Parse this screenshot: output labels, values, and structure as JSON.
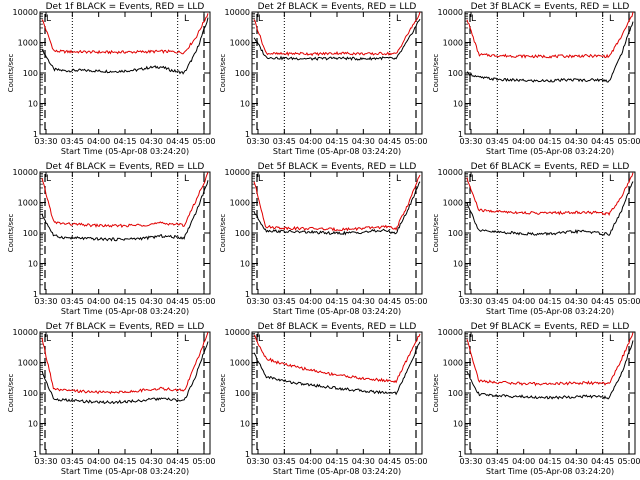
{
  "chart_data": [
    {
      "type": "line",
      "title": "Det 1f BLACK = Events, RED = LLD",
      "xlabel": "Start Time (05-Apr-08 03:24:20)",
      "ylabel": "Counts/sec",
      "yscale": "log",
      "ylim": [
        1,
        10000
      ],
      "yticks": [
        "1",
        "10",
        "100",
        "1000",
        "10000"
      ],
      "xticks": [
        "03:30",
        "03:45",
        "04:00",
        "04:15",
        "04:30",
        "04:45",
        "05:00"
      ],
      "marker": "L",
      "series": [
        {
          "color": "#000000",
          "values": [
            600,
            130,
            118,
            122,
            120,
            115,
            112,
            118,
            125,
            150,
            160,
            120,
            100,
            500,
            6000
          ]
        },
        {
          "color": "#e00000",
          "values": [
            6000,
            520,
            500,
            495,
            490,
            480,
            480,
            485,
            490,
            500,
            510,
            500,
            470,
            1500,
            9000
          ]
        }
      ]
    },
    {
      "type": "line",
      "title": "Det 2f BLACK = Events, RED = LLD",
      "xlabel": "Start Time (05-Apr-08 03:24:20)",
      "ylabel": "Counts/sec",
      "yscale": "log",
      "ylim": [
        1,
        10000
      ],
      "yticks": [
        "1",
        "10",
        "100",
        "1000",
        "10000"
      ],
      "xticks": [
        "03:30",
        "03:45",
        "04:00",
        "04:15",
        "04:30",
        "04:45",
        "05:00"
      ],
      "marker": "L",
      "series": [
        {
          "color": "#000000",
          "values": [
            1500,
            330,
            310,
            300,
            300,
            290,
            300,
            310,
            300,
            290,
            300,
            310,
            290,
            1200,
            6000
          ]
        },
        {
          "color": "#e00000",
          "values": [
            6000,
            450,
            420,
            430,
            440,
            420,
            430,
            450,
            440,
            430,
            420,
            440,
            420,
            2000,
            9000
          ]
        }
      ]
    },
    {
      "type": "line",
      "title": "Det 3f BLACK = Events, RED = LLD",
      "xlabel": "Start Time (05-Apr-08 03:24:20)",
      "ylabel": "Counts/sec",
      "yscale": "log",
      "ylim": [
        1,
        10000
      ],
      "yticks": [
        "1",
        "10",
        "100",
        "1000",
        "10000"
      ],
      "xticks": [
        "03:30",
        "03:45",
        "04:00",
        "04:15",
        "04:30",
        "04:45",
        "05:00"
      ],
      "marker": "L",
      "series": [
        {
          "color": "#000000",
          "values": [
            100,
            72,
            65,
            60,
            58,
            56,
            55,
            56,
            58,
            60,
            58,
            60,
            55,
            400,
            5000
          ]
        },
        {
          "color": "#e00000",
          "values": [
            6000,
            400,
            380,
            370,
            360,
            355,
            350,
            350,
            355,
            360,
            365,
            360,
            350,
            1500,
            9000
          ]
        }
      ]
    },
    {
      "type": "line",
      "title": "Det 4f BLACK = Events, RED = LLD",
      "xlabel": "Start Time (05-Apr-08 03:24:20)",
      "ylabel": "Counts/sec",
      "yscale": "log",
      "ylim": [
        1,
        10000
      ],
      "yticks": [
        "1",
        "10",
        "100",
        "1000",
        "10000"
      ],
      "xticks": [
        "03:30",
        "03:45",
        "04:00",
        "04:15",
        "04:30",
        "04:45",
        "05:00"
      ],
      "marker": "L",
      "series": [
        {
          "color": "#000000",
          "values": [
            400,
            80,
            70,
            68,
            65,
            63,
            62,
            63,
            65,
            70,
            80,
            75,
            70,
            500,
            5000
          ]
        },
        {
          "color": "#e00000",
          "values": [
            6000,
            220,
            200,
            190,
            180,
            175,
            170,
            175,
            180,
            190,
            210,
            200,
            180,
            1200,
            9000
          ]
        }
      ]
    },
    {
      "type": "line",
      "title": "Det 5f BLACK = Events, RED = LLD",
      "xlabel": "Start Time (05-Apr-08 03:24:20)",
      "ylabel": "Counts/sec",
      "yscale": "log",
      "ylim": [
        1,
        10000
      ],
      "yticks": [
        "1",
        "10",
        "100",
        "1000",
        "10000"
      ],
      "xticks": [
        "03:30",
        "03:45",
        "04:00",
        "04:15",
        "04:30",
        "04:45",
        "05:00"
      ],
      "marker": "L",
      "series": [
        {
          "color": "#000000",
          "values": [
            500,
            120,
            115,
            110,
            108,
            105,
            100,
            98,
            100,
            105,
            115,
            120,
            100,
            600,
            5000
          ]
        },
        {
          "color": "#e00000",
          "values": [
            5000,
            160,
            150,
            145,
            140,
            140,
            135,
            130,
            135,
            140,
            150,
            160,
            140,
            900,
            8000
          ]
        }
      ]
    },
    {
      "type": "line",
      "title": "Det 6f BLACK = Events, RED = LLD",
      "xlabel": "Start Time (05-Apr-08 03:24:20)",
      "ylabel": "Counts/sec",
      "yscale": "log",
      "ylim": [
        1,
        10000
      ],
      "yticks": [
        "1",
        "10",
        "100",
        "1000",
        "10000"
      ],
      "xticks": [
        "03:30",
        "03:45",
        "04:00",
        "04:15",
        "04:30",
        "04:45",
        "05:00"
      ],
      "marker": "L",
      "series": [
        {
          "color": "#000000",
          "values": [
            1000,
            120,
            110,
            105,
            100,
            95,
            92,
            95,
            100,
            110,
            115,
            100,
            90,
            500,
            5000
          ]
        },
        {
          "color": "#e00000",
          "values": [
            6000,
            560,
            520,
            500,
            480,
            460,
            450,
            455,
            460,
            470,
            480,
            460,
            430,
            1500,
            9000
          ]
        }
      ]
    },
    {
      "type": "line",
      "title": "Det 7f BLACK = Events, RED = LLD",
      "xlabel": "Start Time (05-Apr-08 03:24:20)",
      "ylabel": "Counts/sec",
      "yscale": "log",
      "ylim": [
        1,
        10000
      ],
      "yticks": [
        "1",
        "10",
        "100",
        "1000",
        "10000"
      ],
      "xticks": [
        "03:30",
        "03:45",
        "04:00",
        "04:15",
        "04:30",
        "04:45",
        "05:00"
      ],
      "marker": "L",
      "series": [
        {
          "color": "#000000",
          "values": [
            500,
            62,
            58,
            55,
            52,
            50,
            50,
            52,
            55,
            60,
            65,
            60,
            55,
            400,
            5000
          ]
        },
        {
          "color": "#e00000",
          "values": [
            6000,
            130,
            120,
            115,
            110,
            105,
            105,
            110,
            115,
            130,
            140,
            130,
            120,
            1000,
            9000
          ]
        }
      ]
    },
    {
      "type": "line",
      "title": "Det 8f BLACK = Events, RED = LLD",
      "xlabel": "Start Time (05-Apr-08 03:24:20)",
      "ylabel": "Counts/sec",
      "yscale": "log",
      "ylim": [
        1,
        10000
      ],
      "yticks": [
        "1",
        "10",
        "100",
        "1000",
        "10000"
      ],
      "xticks": [
        "03:30",
        "03:45",
        "04:00",
        "04:15",
        "04:30",
        "04:45",
        "05:00"
      ],
      "marker": "L",
      "series": [
        {
          "color": "#000000",
          "values": [
            2000,
            350,
            280,
            230,
            200,
            180,
            160,
            145,
            130,
            120,
            110,
            105,
            100,
            600,
            5000
          ]
        },
        {
          "color": "#e00000",
          "values": [
            8000,
            1400,
            1000,
            800,
            650,
            550,
            450,
            400,
            350,
            300,
            280,
            260,
            240,
            1500,
            9000
          ]
        }
      ]
    },
    {
      "type": "line",
      "title": "Det 9f BLACK = Events, RED = LLD",
      "xlabel": "Start Time (05-Apr-08 03:24:20)",
      "ylabel": "Counts/sec",
      "yscale": "log",
      "ylim": [
        1,
        10000
      ],
      "yticks": [
        "1",
        "10",
        "100",
        "1000",
        "10000"
      ],
      "xticks": [
        "03:30",
        "03:45",
        "04:00",
        "04:15",
        "04:30",
        "04:45",
        "05:00"
      ],
      "marker": "L",
      "series": [
        {
          "color": "#000000",
          "values": [
            500,
            90,
            85,
            80,
            78,
            75,
            72,
            70,
            72,
            75,
            78,
            75,
            70,
            400,
            5000
          ]
        },
        {
          "color": "#e00000",
          "values": [
            6000,
            250,
            230,
            220,
            210,
            200,
            200,
            200,
            205,
            210,
            215,
            210,
            200,
            1200,
            9000
          ]
        }
      ]
    }
  ]
}
